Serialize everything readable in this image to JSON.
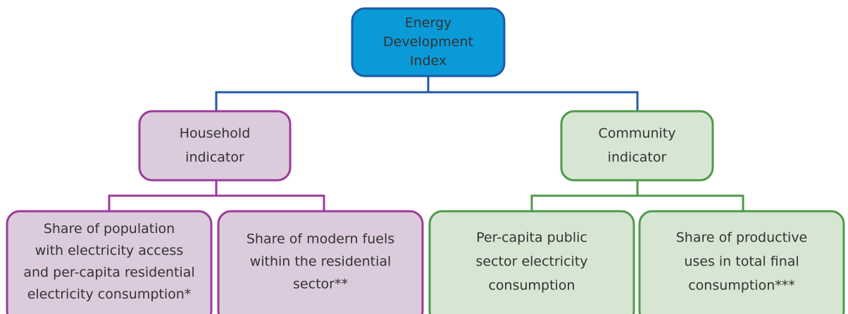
{
  "nodes": [
    {
      "lines": [
        "Energy",
        "Development",
        "Index"
      ]
    },
    {
      "lines": [
        "Household",
        "indicator"
      ]
    },
    {
      "lines": [
        "Community",
        "indicator"
      ]
    },
    {
      "lines": [
        "Share of population",
        "with electricity access",
        "and per-capita residential",
        "electricity consumption*"
      ]
    },
    {
      "lines": [
        "Share of modern fuels",
        "within the residential",
        "sector**"
      ]
    },
    {
      "lines": [
        "Per-capita public",
        "sector electricity",
        "consumption"
      ]
    },
    {
      "lines": [
        "Share of productive",
        "uses in total final",
        "consumption***"
      ]
    }
  ]
}
